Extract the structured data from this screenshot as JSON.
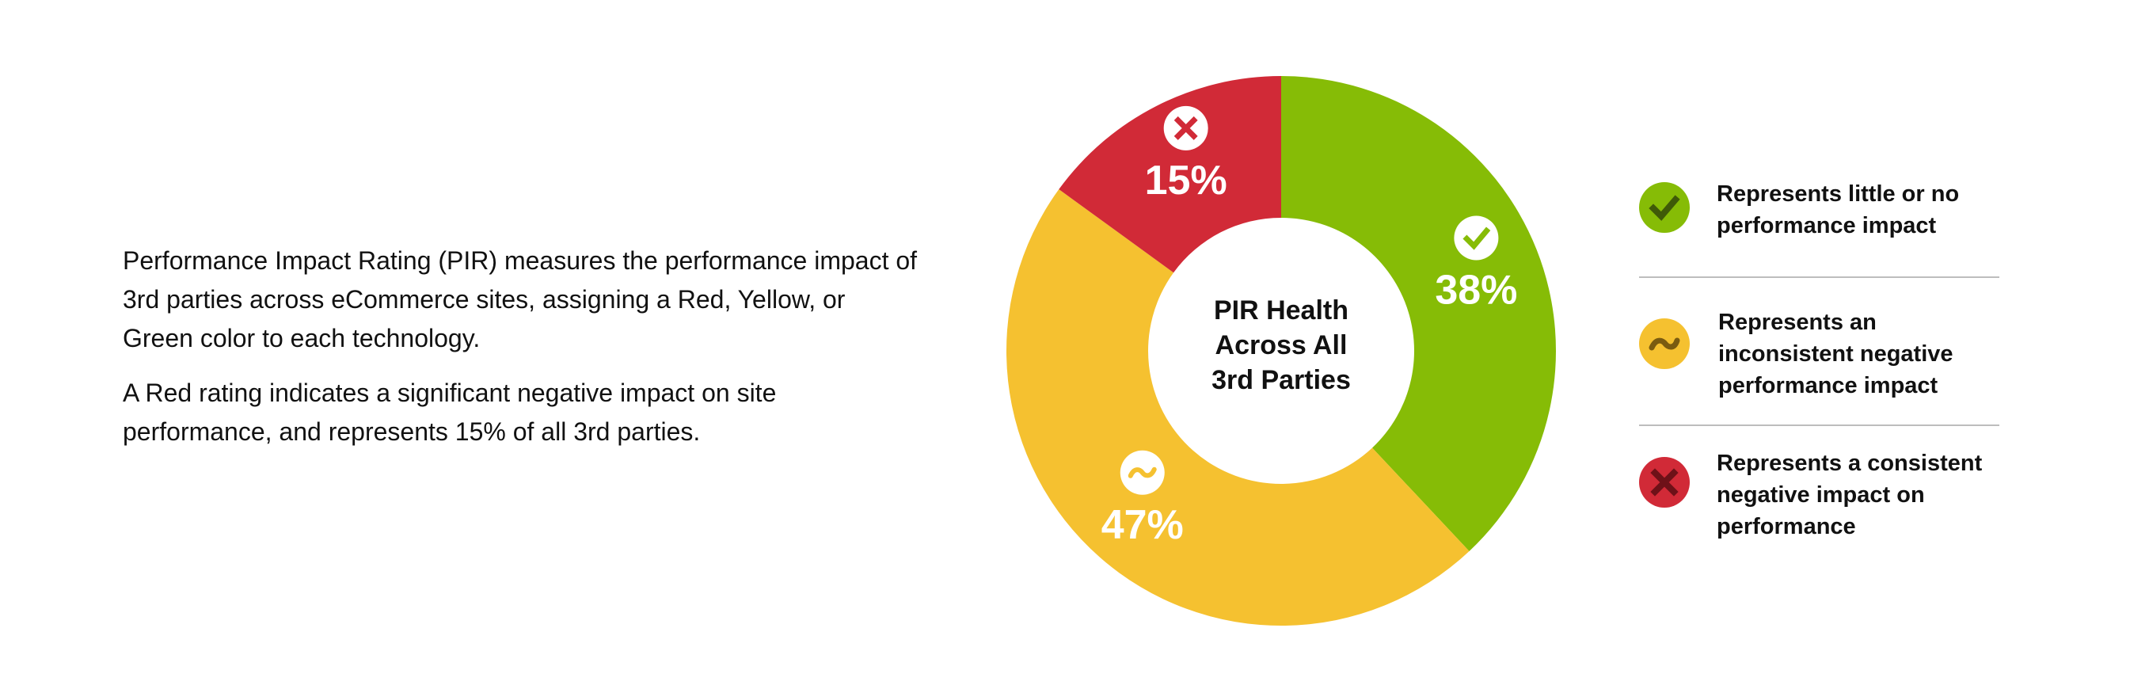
{
  "description": {
    "paragraph1": "Performance Impact Rating (PIR) measures the performance impact of 3rd parties across eCommerce sites, assigning a Red, Yellow, or Green color to each technology.",
    "paragraph2": "A Red rating indicates a significant negative impact on site performance, and represents 15% of all 3rd parties."
  },
  "chart_data": {
    "type": "pie",
    "title": "PIR Health Across All 3rd Parties",
    "title_lines": [
      "PIR Health",
      "Across All",
      "3rd Parties"
    ],
    "slices": [
      {
        "label": "38%",
        "value": 38,
        "color": "#86bc06",
        "icon": "check-icon"
      },
      {
        "label": "47%",
        "value": 47,
        "color": "#f5c130",
        "icon": "wave-icon"
      },
      {
        "label": "15%",
        "value": 15,
        "color": "#d12a37",
        "icon": "x-icon"
      }
    ]
  },
  "legend": {
    "items": [
      {
        "icon": "check-icon",
        "color": "#86bc06",
        "mark_color": "#3f5a08",
        "lines": [
          "Represents little or no",
          "performance impact"
        ]
      },
      {
        "icon": "wave-icon",
        "color": "#f5c130",
        "mark_color": "#7a5b10",
        "lines": [
          "Represents an",
          "inconsistent negative",
          "performance impact"
        ]
      },
      {
        "icon": "x-icon",
        "color": "#d12a37",
        "mark_color": "#6e1118",
        "lines": [
          "Represents a consistent",
          "negative impact on",
          "performance"
        ]
      }
    ]
  }
}
